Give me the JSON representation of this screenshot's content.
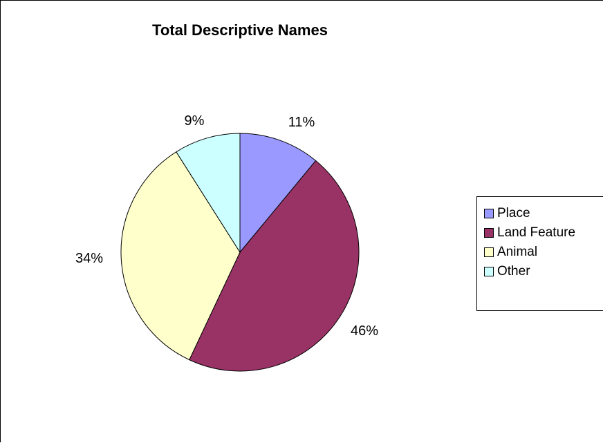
{
  "chart_data": {
    "type": "pie",
    "title": "Total Descriptive Names",
    "slices": [
      {
        "name": "Place",
        "value": 11,
        "label": "11%",
        "color": "#9999ff"
      },
      {
        "name": "Land Feature",
        "value": 46,
        "label": "46%",
        "color": "#993366"
      },
      {
        "name": "Animal",
        "value": 34,
        "label": "34%",
        "color": "#ffffcc"
      },
      {
        "name": "Other",
        "value": 9,
        "label": "9%",
        "color": "#ccffff"
      }
    ],
    "legend_position": "right"
  }
}
